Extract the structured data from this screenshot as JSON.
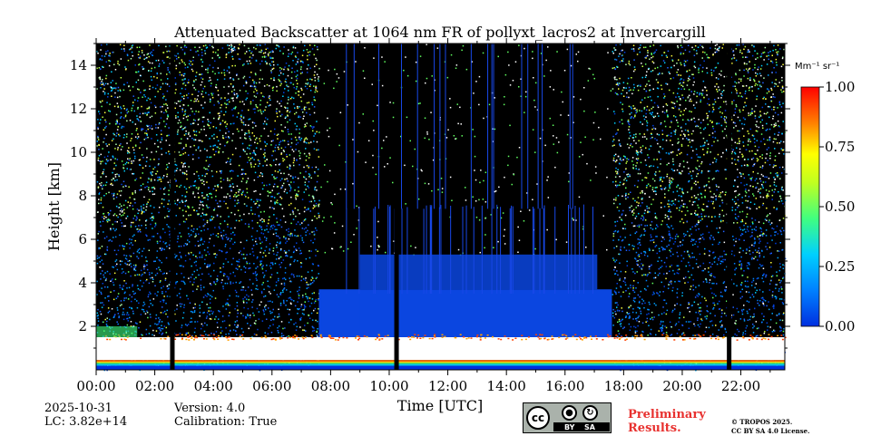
{
  "chart_data": {
    "type": "heatmap",
    "title": "Attenuated Backscatter at 1064 nm FR of pollyxt_lacros2 at Invercargill",
    "xlabel": "Time [UTC]",
    "ylabel": "Height [km]",
    "x_ticks": [
      "00:00",
      "02:00",
      "04:00",
      "06:00",
      "08:00",
      "10:00",
      "12:00",
      "14:00",
      "16:00",
      "18:00",
      "20:00",
      "22:00"
    ],
    "x_tick_hours": [
      0,
      2,
      4,
      6,
      8,
      10,
      12,
      14,
      16,
      18,
      20,
      22
    ],
    "xlim_hours": [
      0,
      23.5
    ],
    "y_ticks": [
      "2",
      "4",
      "6",
      "8",
      "10",
      "12",
      "14"
    ],
    "y_tick_values": [
      2,
      4,
      6,
      8,
      10,
      12,
      14
    ],
    "ylim_km": [
      0,
      15
    ],
    "colorbar": {
      "unit": "Mm⁻¹ sr⁻¹",
      "ticks": [
        "0.00",
        "0.25",
        "0.50",
        "0.75",
        "1.00"
      ],
      "tick_values": [
        0,
        0.25,
        0.5,
        0.75,
        1.0
      ],
      "range": [
        0,
        1.0
      ],
      "colormap": "jet"
    },
    "features": {
      "boundary_layer_top_km": 1.5,
      "boundary_layer_base_km": 0.2,
      "daytime_noise_hours": [
        [
          0,
          7.6
        ],
        [
          17.6,
          23.5
        ]
      ],
      "nighttime_hours": [
        7.6,
        17.6
      ],
      "low_signal_layer_km": [
        1.5,
        5.3
      ],
      "data_gaps_hours": [
        2.6,
        10.25,
        21.6
      ]
    }
  },
  "footer": {
    "date": "2025-10-31",
    "lc": "LC: 3.82e+14",
    "version": "Version: 4.0",
    "calibration": "Calibration: True",
    "preliminary_line1": "Preliminary",
    "preliminary_line2": "Results.",
    "copyright_line1": "© TROPOS 2025.",
    "copyright_line2": "CC BY SA 4.0 License.",
    "license_badge": {
      "cc": "cc",
      "by": "BY",
      "sa": "SA"
    }
  }
}
